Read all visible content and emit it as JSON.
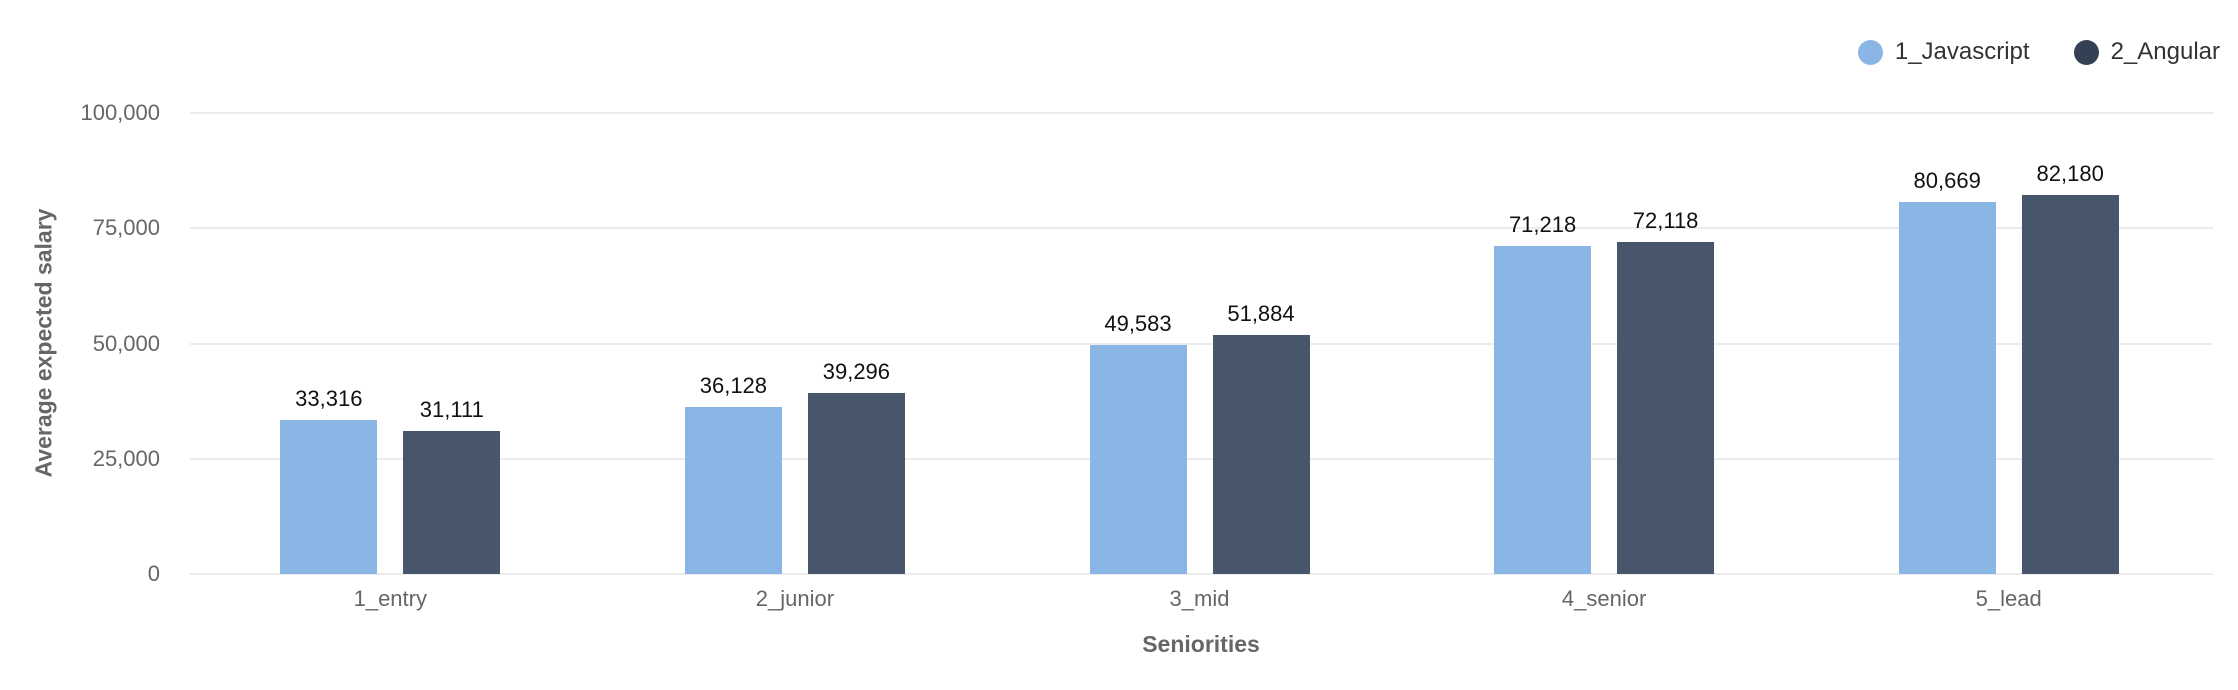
{
  "chart_data": {
    "type": "bar",
    "title": "",
    "xlabel": "Seniorities",
    "ylabel": "Average expected salary",
    "ylim": [
      0,
      100000
    ],
    "yticks": [
      "0",
      "25,000",
      "50,000",
      "75,000",
      "100,000"
    ],
    "grid": true,
    "legend_position": "top-right",
    "categories": [
      "1_entry",
      "2_junior",
      "3_mid",
      "4_senior",
      "5_lead"
    ],
    "series": [
      {
        "name": "1_Javascript",
        "color": "#8ab6e6",
        "values": [
          33316,
          36128,
          49583,
          71218,
          80669
        ],
        "labels": [
          "33,316",
          "36,128",
          "49,583",
          "71,218",
          "80,669"
        ]
      },
      {
        "name": "2_Angular",
        "color": "#48566b",
        "values": [
          31111,
          39296,
          51884,
          72118,
          82180
        ],
        "labels": [
          "31,111",
          "39,296",
          "51,884",
          "72,118",
          "82,180"
        ]
      }
    ]
  },
  "legend": {
    "items": [
      {
        "label": "1_Javascript",
        "color": "#8ab6e6"
      },
      {
        "label": "2_Angular",
        "color": "#344155"
      }
    ]
  },
  "axes": {
    "x_title": "Seniorities",
    "y_title": "Average expected salary"
  }
}
